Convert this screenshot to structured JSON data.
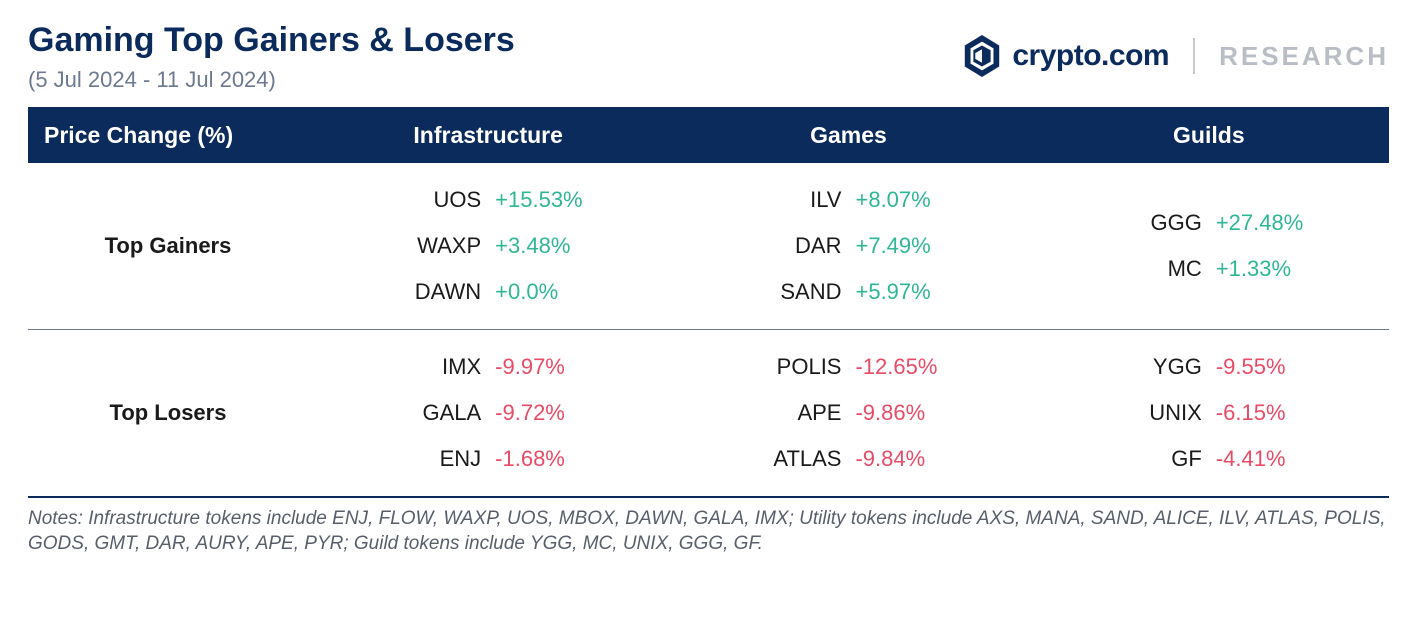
{
  "header": {
    "title": "Gaming Top Gainers & Losers",
    "date_range": "(5 Jul 2024 - 11 Jul 2024)",
    "brand_text": "crypto.com",
    "research_text": "RESEARCH",
    "brand_color": "#0b2b5c"
  },
  "table": {
    "type": "table",
    "header_bg": "#0b2b5c",
    "header_fg": "#ffffff",
    "gain_color": "#2fb795",
    "loss_color": "#e94a66",
    "columns": {
      "c0": "Price Change (%)",
      "c1": "Infrastructure",
      "c2": "Games",
      "c3": "Guilds"
    },
    "sections": [
      {
        "label": "Top Gainers",
        "direction": "gain",
        "data": {
          "infrastructure": [
            {
              "sym": "UOS",
              "val": "+15.53%"
            },
            {
              "sym": "WAXP",
              "val": "+3.48%"
            },
            {
              "sym": "DAWN",
              "val": "+0.0%"
            }
          ],
          "games": [
            {
              "sym": "ILV",
              "val": "+8.07%"
            },
            {
              "sym": "DAR",
              "val": "+7.49%"
            },
            {
              "sym": "SAND",
              "val": "+5.97%"
            }
          ],
          "guilds": [
            {
              "sym": "GGG",
              "val": "+27.48%"
            },
            {
              "sym": "MC",
              "val": "+1.33%"
            }
          ]
        }
      },
      {
        "label": "Top Losers",
        "direction": "loss",
        "data": {
          "infrastructure": [
            {
              "sym": "IMX",
              "val": "-9.97%"
            },
            {
              "sym": "GALA",
              "val": "-9.72%"
            },
            {
              "sym": "ENJ",
              "val": "-1.68%"
            }
          ],
          "games": [
            {
              "sym": "POLIS",
              "val": "-12.65%"
            },
            {
              "sym": "APE",
              "val": "-9.86%"
            },
            {
              "sym": "ATLAS",
              "val": "-9.84%"
            }
          ],
          "guilds": [
            {
              "sym": "YGG",
              "val": "-9.55%"
            },
            {
              "sym": "UNIX",
              "val": "-6.15%"
            },
            {
              "sym": "GF",
              "val": "-4.41%"
            }
          ]
        }
      }
    ]
  },
  "notes": "Notes: Infrastructure tokens include ENJ, FLOW, WAXP, UOS, MBOX, DAWN, GALA, IMX; Utility tokens include AXS, MANA, SAND, ALICE, ILV, ATLAS, POLIS, GODS, GMT, DAR, AURY, APE, PYR; Guild tokens include YGG, MC, UNIX, GGG, GF."
}
